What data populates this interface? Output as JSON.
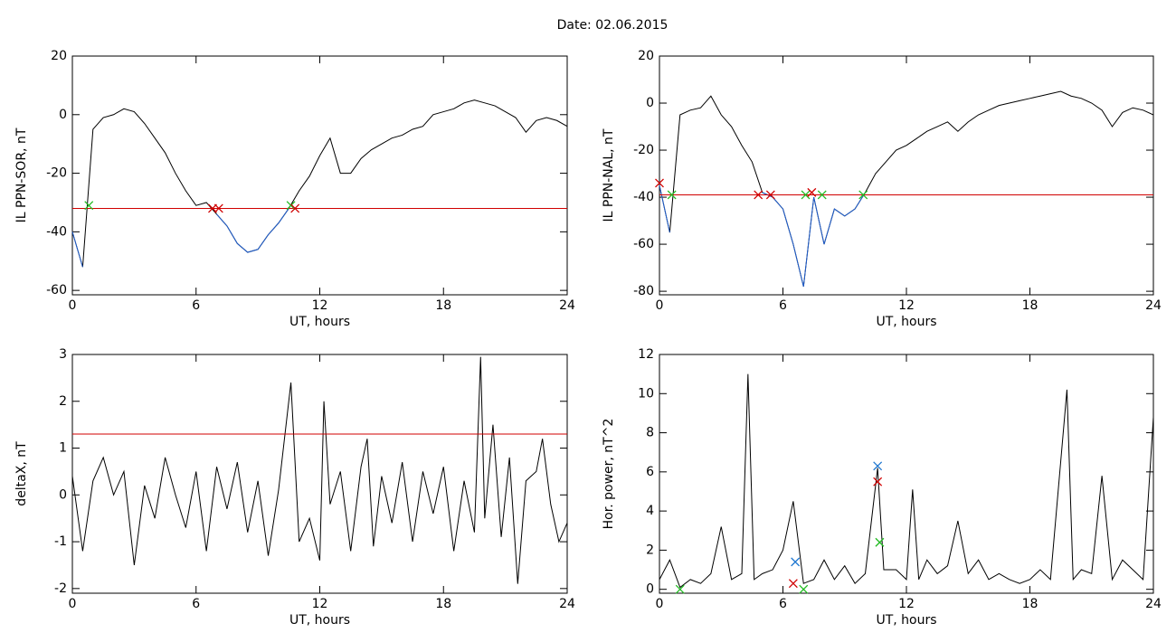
{
  "title": "Date:  02.06.2015",
  "chart_data": [
    {
      "type": "line",
      "xlabel": "UT, hours",
      "ylabel": "IL PPN-SOR, nT",
      "xlim": [
        0,
        24
      ],
      "xticks": [
        0,
        6,
        12,
        18,
        24
      ],
      "ylim": [
        -61.5,
        20
      ],
      "yticks": [
        -60,
        -40,
        -20,
        0,
        20
      ],
      "x": [
        0,
        0.5,
        1,
        1.5,
        2,
        2.5,
        3,
        3.5,
        4,
        4.5,
        5,
        5.5,
        6,
        6.5,
        7,
        7.5,
        8,
        8.5,
        9,
        9.5,
        10,
        10.5,
        11,
        11.5,
        12,
        12.5,
        13,
        13.5,
        14,
        14.5,
        15,
        15.5,
        16,
        16.5,
        17,
        17.5,
        18,
        18.5,
        19,
        19.5,
        20,
        20.5,
        21,
        21.5,
        22,
        22.5,
        23,
        23.5,
        24
      ],
      "series": [
        {
          "color": "#000000",
          "values": [
            -40,
            -52,
            -5,
            -1,
            0,
            2,
            1,
            -3,
            -8,
            -13,
            -20,
            -26,
            -31,
            -30,
            -34,
            -38,
            -44,
            -47,
            -46,
            -41,
            -37,
            -32,
            -26,
            -21,
            -14,
            -8,
            -20,
            -20,
            -15,
            -12,
            -10,
            -8,
            -7,
            -5,
            -4,
            0,
            1,
            2,
            4,
            5,
            4,
            3,
            1,
            -1,
            -6,
            -2,
            -1,
            -2,
            -4
          ]
        },
        {
          "color": "#1f5fd0",
          "values": [
            -40,
            -52,
            null,
            null,
            null,
            null,
            null,
            null,
            null,
            null,
            null,
            null,
            null,
            null,
            -34,
            -38,
            -44,
            -47,
            -46,
            -41,
            -37,
            -32,
            null,
            null,
            null,
            null,
            null,
            null,
            null,
            null,
            null,
            null,
            null,
            null,
            null,
            null,
            null,
            null,
            null,
            null,
            null,
            null,
            null,
            null,
            null,
            null,
            null,
            null,
            null
          ]
        }
      ],
      "threshold": {
        "value": -32,
        "color": "#d00000"
      },
      "markers": {
        "x": [
          0.8,
          6.8,
          7.1,
          10.6,
          10.8
        ],
        "values": [
          -31,
          -32,
          -32,
          -31,
          -32
        ],
        "colors": [
          "#22bb22",
          "#d00000",
          "#d00000",
          "#22bb22",
          "#d00000"
        ]
      }
    },
    {
      "type": "line",
      "xlabel": "UT, hours",
      "ylabel": "IL PPN-NAL, nT",
      "xlim": [
        0,
        24
      ],
      "xticks": [
        0,
        6,
        12,
        18,
        24
      ],
      "ylim": [
        -81.5,
        20
      ],
      "yticks": [
        -80,
        -60,
        -40,
        -20,
        0,
        20
      ],
      "x": [
        0,
        0.5,
        1,
        1.5,
        2,
        2.5,
        3,
        3.5,
        4,
        4.5,
        5,
        5.5,
        6,
        6.5,
        7,
        7.5,
        8,
        8.5,
        9,
        9.5,
        10,
        10.5,
        11,
        11.5,
        12,
        12.5,
        13,
        13.5,
        14,
        14.5,
        15,
        15.5,
        16,
        16.5,
        17,
        17.5,
        18,
        18.5,
        19,
        19.5,
        20,
        20.5,
        21,
        21.5,
        22,
        22.5,
        23,
        23.5,
        24
      ],
      "series": [
        {
          "color": "#000000",
          "values": [
            -35,
            -55,
            -5,
            -3,
            -2,
            3,
            -5,
            -10,
            -18,
            -25,
            -38,
            -40,
            -45,
            -60,
            -78,
            -40,
            -60,
            -45,
            -48,
            -45,
            -38,
            -30,
            -25,
            -20,
            -18,
            -15,
            -12,
            -10,
            -8,
            -12,
            -8,
            -5,
            -3,
            -1,
            0,
            1,
            2,
            3,
            4,
            5,
            3,
            2,
            0,
            -3,
            -10,
            -4,
            -2,
            -3,
            -5
          ]
        },
        {
          "color": "#1f5fd0",
          "values": [
            -35,
            -55,
            null,
            null,
            null,
            null,
            null,
            null,
            null,
            null,
            -38,
            -40,
            -45,
            -60,
            -78,
            -40,
            -60,
            -45,
            -48,
            -45,
            -38,
            null,
            null,
            null,
            null,
            null,
            null,
            null,
            null,
            null,
            null,
            null,
            null,
            null,
            null,
            null,
            null,
            null,
            null,
            null,
            null,
            null,
            null,
            null,
            null,
            null,
            null,
            null,
            null
          ]
        }
      ],
      "threshold": {
        "value": -39,
        "color": "#d00000"
      },
      "markers": {
        "x": [
          0,
          0.6,
          4.8,
          5.4,
          7.1,
          7.4,
          7.9,
          9.9
        ],
        "values": [
          -34,
          -39,
          -39,
          -39,
          -39,
          -38,
          -39,
          -39
        ],
        "colors": [
          "#d00000",
          "#22bb22",
          "#d00000",
          "#d00000",
          "#22bb22",
          "#d00000",
          "#22bb22",
          "#22bb22"
        ]
      }
    },
    {
      "type": "line",
      "xlabel": "UT, hours",
      "ylabel": "deltaX, nT",
      "xlim": [
        0,
        24
      ],
      "xticks": [
        0,
        6,
        12,
        18,
        24
      ],
      "ylim": [
        -2.1,
        3
      ],
      "yticks": [
        -2,
        -1,
        0,
        1,
        2,
        3
      ],
      "x": [
        0,
        0.5,
        1,
        1.5,
        2,
        2.5,
        3,
        3.5,
        4,
        4.5,
        5,
        5.5,
        6,
        6.5,
        7,
        7.5,
        8,
        8.5,
        9,
        9.5,
        10,
        10.6,
        11,
        11.5,
        12,
        12.2,
        12.5,
        13,
        13.5,
        14,
        14.3,
        14.6,
        15,
        15.5,
        16,
        16.5,
        17,
        17.5,
        18,
        18.5,
        19,
        19.5,
        19.8,
        20,
        20.4,
        20.8,
        21.2,
        21.6,
        22,
        22.5,
        22.8,
        23.2,
        23.6,
        24
      ],
      "series": [
        {
          "color": "#000000",
          "values": [
            0.4,
            -1.2,
            0.3,
            0.8,
            0,
            0.5,
            -1.5,
            0.2,
            -0.5,
            0.8,
            0,
            -0.7,
            0.5,
            -1.2,
            0.6,
            -0.3,
            0.7,
            -0.8,
            0.3,
            -1.3,
            0.1,
            2.4,
            -1,
            -0.5,
            -1.4,
            2.0,
            -0.2,
            0.5,
            -1.2,
            0.6,
            1.2,
            -1.1,
            0.4,
            -0.6,
            0.7,
            -1,
            0.5,
            -0.4,
            0.6,
            -1.2,
            0.3,
            -0.8,
            2.95,
            -0.5,
            1.5,
            -0.9,
            0.8,
            -1.9,
            0.3,
            0.5,
            1.2,
            -0.2,
            -1,
            -0.6
          ]
        }
      ],
      "threshold": {
        "value": 1.3,
        "color": "#d00000"
      }
    },
    {
      "type": "line",
      "xlabel": "UT, hours",
      "ylabel": "Hor. power, nT^2",
      "xlim": [
        0,
        24
      ],
      "xticks": [
        0,
        6,
        12,
        18,
        24
      ],
      "ylim": [
        -0.2,
        12
      ],
      "yticks": [
        0,
        2,
        4,
        6,
        8,
        10,
        12
      ],
      "x": [
        0,
        0.5,
        1,
        1.5,
        2,
        2.5,
        3,
        3.5,
        4,
        4.3,
        4.6,
        5,
        5.5,
        6,
        6.5,
        7,
        7.5,
        8,
        8.5,
        9,
        9.5,
        10,
        10.6,
        10.9,
        11.5,
        12,
        12.3,
        12.6,
        13,
        13.5,
        14,
        14.5,
        15,
        15.5,
        16,
        16.5,
        17,
        17.5,
        18,
        18.5,
        19,
        19.8,
        20.1,
        20.5,
        21,
        21.5,
        22,
        22.5,
        23,
        23.5,
        24
      ],
      "series": [
        {
          "color": "#000000",
          "values": [
            0.5,
            1.5,
            0.1,
            0.5,
            0.3,
            0.8,
            3.2,
            0.5,
            0.8,
            11,
            0.5,
            0.8,
            1,
            2,
            4.5,
            0.3,
            0.5,
            1.5,
            0.5,
            1.2,
            0.3,
            0.8,
            6.2,
            1,
            1,
            0.5,
            5.1,
            0.5,
            1.5,
            0.8,
            1.2,
            3.5,
            0.8,
            1.5,
            0.5,
            0.8,
            0.5,
            0.3,
            0.5,
            1,
            0.5,
            10.2,
            0.5,
            1,
            0.8,
            5.8,
            0.5,
            1.5,
            1,
            0.5,
            8.8
          ]
        }
      ],
      "markers": {
        "x": [
          1,
          6.5,
          6.6,
          7,
          10.6,
          10.6,
          10.7
        ],
        "values": [
          0,
          0.3,
          1.4,
          0,
          6.3,
          5.5,
          2.4
        ],
        "colors": [
          "#22bb22",
          "#d00000",
          "#1f77d0",
          "#22bb22",
          "#1f77d0",
          "#d00000",
          "#22bb22"
        ]
      }
    }
  ]
}
